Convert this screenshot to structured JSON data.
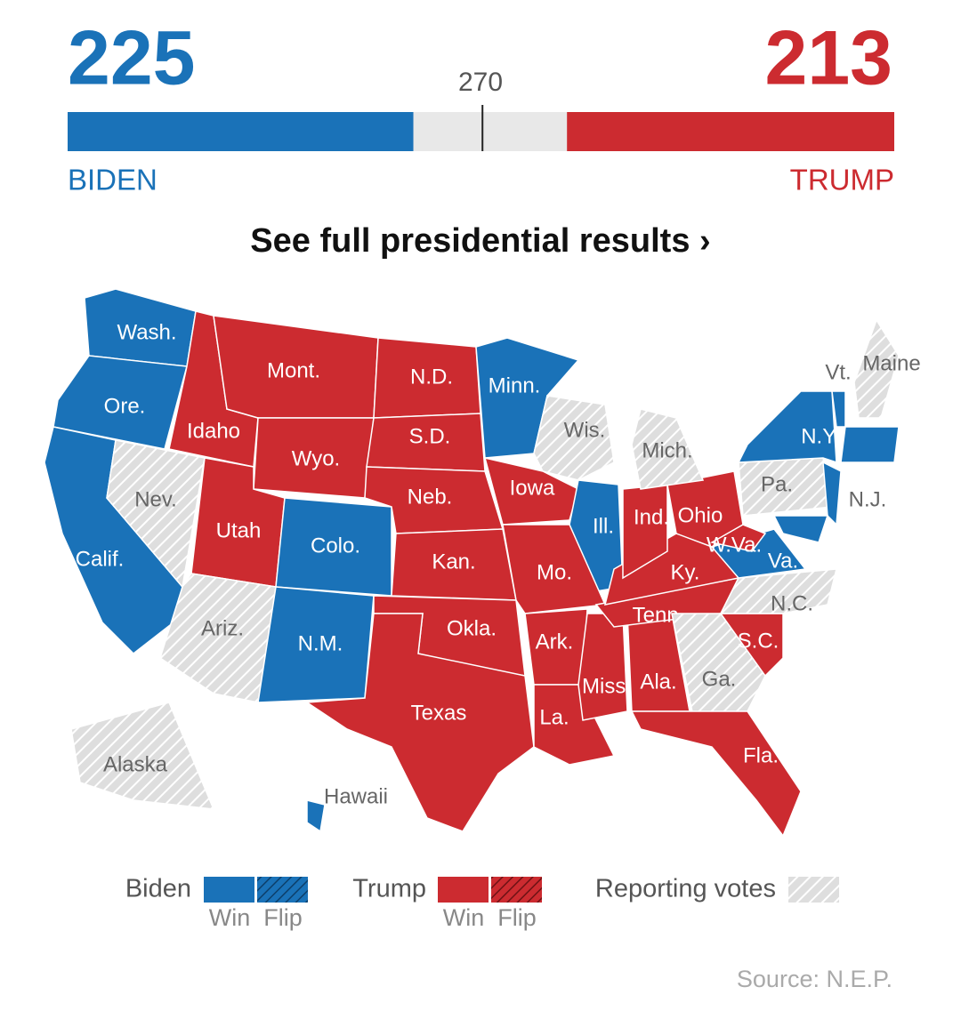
{
  "tally": {
    "xlim": [
      0,
      538
    ],
    "biden": {
      "votes": 225,
      "name": "BIDEN",
      "color": "#1a72b8"
    },
    "trump": {
      "votes": 213,
      "name": "TRUMP",
      "color": "#cc2b30"
    },
    "threshold": 270
  },
  "link": "See full presidential results ›",
  "legend": {
    "biden": {
      "label": "Biden",
      "win": "Win",
      "flip": "Flip"
    },
    "trump": {
      "label": "Trump",
      "win": "Win",
      "flip": "Flip"
    },
    "reporting": {
      "label": "Reporting votes"
    }
  },
  "states": [
    {
      "label": "Wash.",
      "status": "biden"
    },
    {
      "label": "Ore.",
      "status": "biden"
    },
    {
      "label": "Calif.",
      "status": "biden"
    },
    {
      "label": "Nev.",
      "status": "reporting"
    },
    {
      "label": "Idaho",
      "status": "trump"
    },
    {
      "label": "Mont.",
      "status": "trump"
    },
    {
      "label": "Wyo.",
      "status": "trump"
    },
    {
      "label": "Utah",
      "status": "trump"
    },
    {
      "label": "Colo.",
      "status": "biden"
    },
    {
      "label": "Ariz.",
      "status": "reporting"
    },
    {
      "label": "N.M.",
      "status": "biden"
    },
    {
      "label": "N.D.",
      "status": "trump"
    },
    {
      "label": "S.D.",
      "status": "trump"
    },
    {
      "label": "Neb.",
      "status": "trump"
    },
    {
      "label": "Kan.",
      "status": "trump"
    },
    {
      "label": "Okla.",
      "status": "trump"
    },
    {
      "label": "Texas",
      "status": "trump"
    },
    {
      "label": "Minn.",
      "status": "biden"
    },
    {
      "label": "Wis.",
      "status": "reporting"
    },
    {
      "label": "Iowa",
      "status": "trump"
    },
    {
      "label": "Ill.",
      "status": "biden"
    },
    {
      "label": "Mo.",
      "status": "trump"
    },
    {
      "label": "Ark.",
      "status": "trump"
    },
    {
      "label": "La.",
      "status": "trump"
    },
    {
      "label": "Miss.",
      "status": "trump"
    },
    {
      "label": "Ala.",
      "status": "trump"
    },
    {
      "label": "Tenn.",
      "status": "trump"
    },
    {
      "label": "Ky.",
      "status": "trump"
    },
    {
      "label": "Ind.",
      "status": "trump"
    },
    {
      "label": "Ohio",
      "status": "trump"
    },
    {
      "label": "Mich.",
      "status": "reporting"
    },
    {
      "label": "Ga.",
      "status": "reporting"
    },
    {
      "label": "Fla.",
      "status": "trump"
    },
    {
      "label": "S.C.",
      "status": "trump"
    },
    {
      "label": "N.C.",
      "status": "reporting"
    },
    {
      "label": "Va.",
      "status": "biden"
    },
    {
      "label": "W.Va.",
      "status": "trump"
    },
    {
      "label": "Pa.",
      "status": "reporting"
    },
    {
      "label": "N.Y.",
      "status": "biden"
    },
    {
      "label": "N.J.",
      "status": "biden"
    },
    {
      "label": "Vt.",
      "status": "biden"
    },
    {
      "label": "Maine",
      "status": "reporting"
    },
    {
      "label": "Alaska",
      "status": "reporting"
    },
    {
      "label": "Hawaii",
      "status": "biden"
    },
    {
      "label": null,
      "status": "biden"
    },
    {
      "label": null,
      "status": "biden"
    }
  ],
  "source": "Source: N.E.P."
}
